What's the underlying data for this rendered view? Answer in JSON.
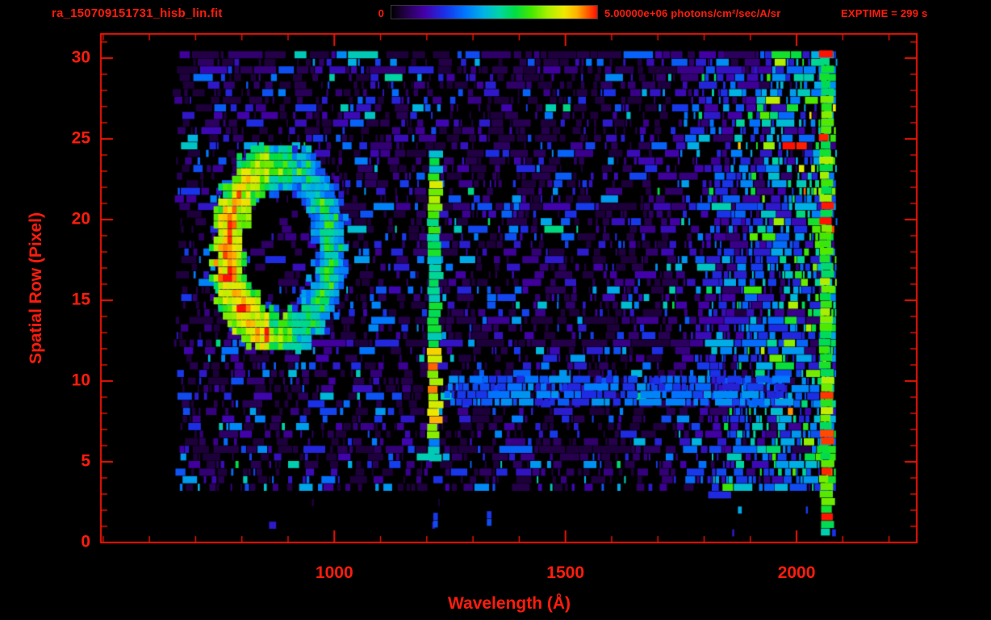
{
  "header": {
    "filename": "ra_150709151731_hisb_lin.fit",
    "colorbar_min_label": "0",
    "colorbar_max_label": "5.00000e+06 photons/cm²/sec/A/sr",
    "exptime_label": "EXPTIME = 299 s"
  },
  "colors": {
    "text": "#ff1c0d",
    "axis": "#f01505",
    "background": "#000000",
    "colormap_stops": [
      [
        0.0,
        "#000000"
      ],
      [
        0.07,
        "#25004a"
      ],
      [
        0.16,
        "#4400a8"
      ],
      [
        0.26,
        "#1b30e8"
      ],
      [
        0.36,
        "#0077ff"
      ],
      [
        0.45,
        "#00b4e4"
      ],
      [
        0.53,
        "#00d6a0"
      ],
      [
        0.6,
        "#00dd44"
      ],
      [
        0.68,
        "#44e800"
      ],
      [
        0.76,
        "#a8f000"
      ],
      [
        0.84,
        "#f0e800"
      ],
      [
        0.9,
        "#ffb400"
      ],
      [
        0.95,
        "#ff6000"
      ],
      [
        1.0,
        "#ff0f00"
      ]
    ]
  },
  "chart_data": {
    "type": "heatmap",
    "title": "ra_150709151731_hisb_lin.fit",
    "xlabel": "Wavelength (Å)",
    "ylabel": "Spatial Row (Pixel)",
    "x_ticks": [
      1000,
      1500,
      2000
    ],
    "x_minor_tick_step": 100,
    "y_ticks": [
      0,
      5,
      10,
      15,
      20,
      25,
      30
    ],
    "y_minor_tick_step": 1,
    "x_range": [
      495,
      2260
    ],
    "y_range": [
      0,
      31.5
    ],
    "colorbar": {
      "min": 0,
      "max": 5000000,
      "units": "photons/cm²/sec/A/sr"
    },
    "exposure_time_s": 299,
    "data_extent": {
      "x_min": 648,
      "x_max": 2085,
      "y_min": 3.05,
      "y_max": 30.3
    },
    "features": [
      {
        "name": "ring-emission-feature",
        "type": "ring",
        "cx": 880,
        "cy": 18.1,
        "rx": 112,
        "ry": 5.3,
        "band": 0.3,
        "intensity": 0.62
      },
      {
        "name": "bright-emission-line",
        "type": "vline",
        "x": 1216,
        "half_width": 13,
        "y_min": 5.0,
        "y_max": 24.0,
        "intensity": 0.58,
        "hot_bands": [
          {
            "y0": 6.3,
            "y1": 11.6,
            "intensity": 0.88
          },
          {
            "y0": 19.6,
            "y1": 23.6,
            "intensity": 0.72
          }
        ]
      },
      {
        "name": "horizontal-blue-streak",
        "type": "hband",
        "y": 9.3,
        "half_height": 0.85,
        "x_min": 1235,
        "x_max": 1955,
        "intensity": 0.3
      },
      {
        "name": "right-edge-bright-column",
        "type": "vline",
        "x": 2063,
        "half_width": 12,
        "y_min": 0.4,
        "y_max": 30.3,
        "intensity": 0.68,
        "fleck_prob": 0.13
      },
      {
        "name": "right-noise-gradient",
        "type": "xgradient",
        "x_start": 1690,
        "x_end": 2085,
        "intensity": 0.4
      }
    ],
    "noise": {
      "seed": 1337,
      "x_start": 648,
      "x_end": 2085,
      "y_start": 3.05,
      "y_end": 30.3,
      "row_step": 0.47,
      "base": 0.45,
      "sparse_prob": 0.02
    },
    "stray_marks": [
      {
        "x": 1217,
        "y": 0.9
      },
      {
        "x": 1333,
        "y": 1.0
      }
    ]
  }
}
